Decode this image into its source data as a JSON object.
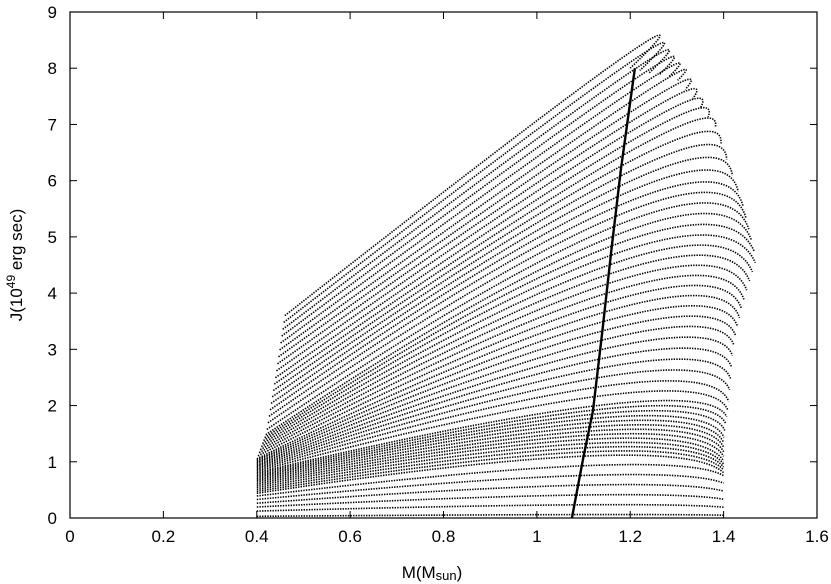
{
  "chart_data": {
    "type": "line",
    "title": "",
    "xlabel": "M(Msun)",
    "ylabel": "J(10^49 erg sec)",
    "xlabel_parts": {
      "main": "M(M",
      "sub": "sun",
      "close": ")"
    },
    "ylabel_parts": {
      "main": "J(10",
      "sup": "49",
      "rest": " erg sec)"
    },
    "xlim": [
      0,
      1.6
    ],
    "ylim": [
      0,
      9
    ],
    "xticks": [
      "0",
      "0.2",
      "0.4",
      "0.6",
      "0.8",
      "1",
      "1.2",
      "1.4",
      "1.6"
    ],
    "yticks": [
      "0",
      "1",
      "2",
      "3",
      "4",
      "5",
      "6",
      "7",
      "8",
      "9"
    ],
    "grid": false,
    "legend": "none",
    "line_color": "#000000",
    "curve_family": {
      "description_count": 55,
      "left_ends": [
        [
          0.4,
          0.03
        ],
        [
          0.4,
          0.42
        ],
        [
          0.4,
          0.65
        ],
        [
          0.4,
          0.86
        ],
        [
          0.4,
          1.05
        ],
        [
          0.42,
          1.5
        ],
        [
          0.44,
          2.5
        ],
        [
          0.46,
          3.6
        ]
      ],
      "peak_points": [
        [
          1.06,
          0.06
        ],
        [
          1.1,
          1.1
        ],
        [
          1.12,
          1.55
        ],
        [
          1.13,
          2.0
        ],
        [
          1.14,
          3.0
        ],
        [
          1.15,
          4.0
        ],
        [
          1.16,
          5.0
        ],
        [
          1.16,
          6.0
        ],
        [
          1.16,
          7.0
        ],
        [
          1.16,
          8.05
        ]
      ],
      "right_ends": [
        [
          1.4,
          0.05
        ],
        [
          1.4,
          0.75
        ],
        [
          1.4,
          1.0
        ],
        [
          1.4,
          1.4
        ],
        [
          1.41,
          2.0
        ],
        [
          1.42,
          3.0
        ],
        [
          1.44,
          3.8
        ],
        [
          1.47,
          4.6
        ],
        [
          1.44,
          5.6
        ],
        [
          1.38,
          7.0
        ],
        [
          1.3,
          7.8
        ],
        [
          1.2,
          8.0
        ]
      ]
    },
    "series": [
      {
        "values": [
          [
            1.075,
            0.0
          ],
          [
            1.1,
            1.1
          ],
          [
            1.12,
            1.9
          ],
          [
            1.14,
            3.3
          ],
          [
            1.16,
            4.8
          ],
          [
            1.18,
            6.2
          ],
          [
            1.2,
            7.4
          ],
          [
            1.21,
            8.0
          ]
        ]
      }
    ]
  }
}
